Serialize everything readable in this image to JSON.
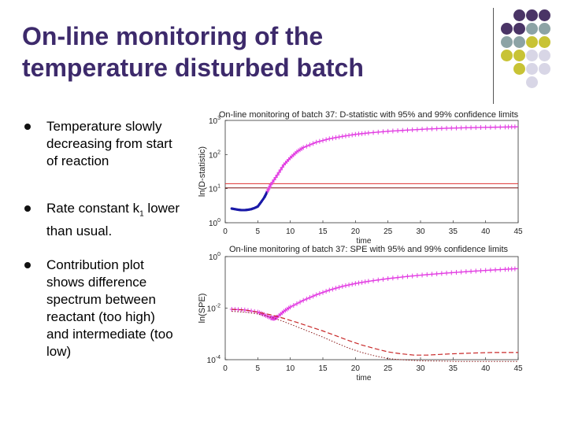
{
  "slide": {
    "title_lines": [
      "On-line monitoring of the",
      "temperature disturbed batch"
    ],
    "bullets": [
      {
        "text": "Temperature slowly decreasing from start of reaction"
      },
      {
        "text_before": "Rate constant k",
        "subscript": "1",
        "text_after": " lower than usual."
      },
      {
        "text": "Contribution plot shows difference spectrum between reactant (too high) and intermediate (too low)"
      }
    ],
    "decor_dot_colors": [
      "#4a3466",
      "#8ca3a5",
      "#c8c335",
      "#d8d6e6"
    ]
  },
  "chart_data": [
    {
      "type": "line",
      "title": "On-line monitoring of batch 37: D-statistic with 95% and 99% confidence limits",
      "xlabel": "time",
      "ylabel": "ln(D-statistic)",
      "x_ticks": [
        "0",
        "5",
        "10",
        "15",
        "20",
        "25",
        "30",
        "35",
        "40",
        "45"
      ],
      "y_ticks": [
        "10^0",
        "10^1",
        "10^2",
        "10^3"
      ],
      "y_scale": "log",
      "xlim": [
        0,
        45
      ],
      "ylim": [
        1,
        1000
      ],
      "limits": {
        "dark_red": 10.5,
        "red": 14
      },
      "series": [
        {
          "x": [
            1,
            1.5,
            2,
            2.5,
            3,
            3.5,
            4,
            4.5,
            5,
            5.5,
            6,
            6.2,
            6.5
          ],
          "y": [
            2.6,
            2.5,
            2.4,
            2.35,
            2.35,
            2.4,
            2.5,
            2.7,
            3.0,
            4.0,
            5.5,
            6.5,
            8.5
          ],
          "color": "#1a1aa8"
        },
        {
          "x": [
            6.5,
            7,
            8,
            9,
            10,
            11,
            12,
            14,
            16,
            18,
            20,
            22,
            25,
            28,
            31,
            34,
            37,
            40,
            43,
            45
          ],
          "y": [
            8.5,
            13,
            25,
            50,
            80,
            120,
            160,
            230,
            290,
            340,
            390,
            430,
            480,
            520,
            560,
            590,
            610,
            625,
            640,
            650
          ],
          "color": "#e23de2"
        }
      ]
    },
    {
      "type": "line",
      "title": "On-line monitoring of batch 37: SPE with 95% and 99% confidence limits",
      "xlabel": "time",
      "ylabel": "ln(SPE)",
      "x_ticks": [
        "0",
        "5",
        "10",
        "15",
        "20",
        "25",
        "30",
        "35",
        "40",
        "45"
      ],
      "y_ticks": [
        "10^-4",
        "10^-2",
        "10^0"
      ],
      "y_scale": "log",
      "xlim": [
        0,
        45
      ],
      "ylim": [
        0.0001,
        1
      ],
      "series": [
        {
          "x": [
            1,
            3,
            5,
            6,
            7,
            7.5,
            8,
            9,
            10,
            12,
            14,
            16,
            18,
            20,
            22,
            25,
            28,
            31,
            34,
            37,
            40,
            43,
            45
          ],
          "y": [
            0.009,
            0.0085,
            0.007,
            0.0055,
            0.0042,
            0.004,
            0.0045,
            0.0075,
            0.011,
            0.02,
            0.033,
            0.05,
            0.07,
            0.09,
            0.11,
            0.14,
            0.17,
            0.2,
            0.23,
            0.26,
            0.29,
            0.32,
            0.34
          ],
          "color": "#e23de2"
        },
        {
          "x": [
            1,
            3,
            5,
            7,
            9,
            11,
            13,
            15,
            17,
            19,
            21,
            23,
            25,
            27,
            29,
            31,
            33,
            35,
            38,
            41,
            45
          ],
          "y": [
            0.009,
            0.0085,
            0.007,
            0.0055,
            0.004,
            0.0028,
            0.0019,
            0.0013,
            0.00085,
            0.00055,
            0.00037,
            0.00027,
            0.0002,
            0.00017,
            0.00015,
            0.00015,
            0.00016,
            0.00017,
            0.00018,
            0.00019,
            0.00019
          ],
          "color": "#c82828"
        },
        {
          "x": [
            1,
            3,
            5,
            7,
            9,
            11,
            13,
            15,
            17,
            19,
            21,
            23,
            25,
            27,
            30,
            33,
            36,
            40,
            45
          ],
          "y": [
            0.0075,
            0.007,
            0.006,
            0.0045,
            0.003,
            0.0019,
            0.0012,
            0.00075,
            0.00045,
            0.00028,
            0.00019,
            0.00014,
            0.00011,
            0.0001,
            9e-05,
            8.8e-05,
            8.5e-05,
            8.5e-05,
            8.5e-05
          ],
          "color": "#8a1a1a"
        }
      ]
    }
  ]
}
